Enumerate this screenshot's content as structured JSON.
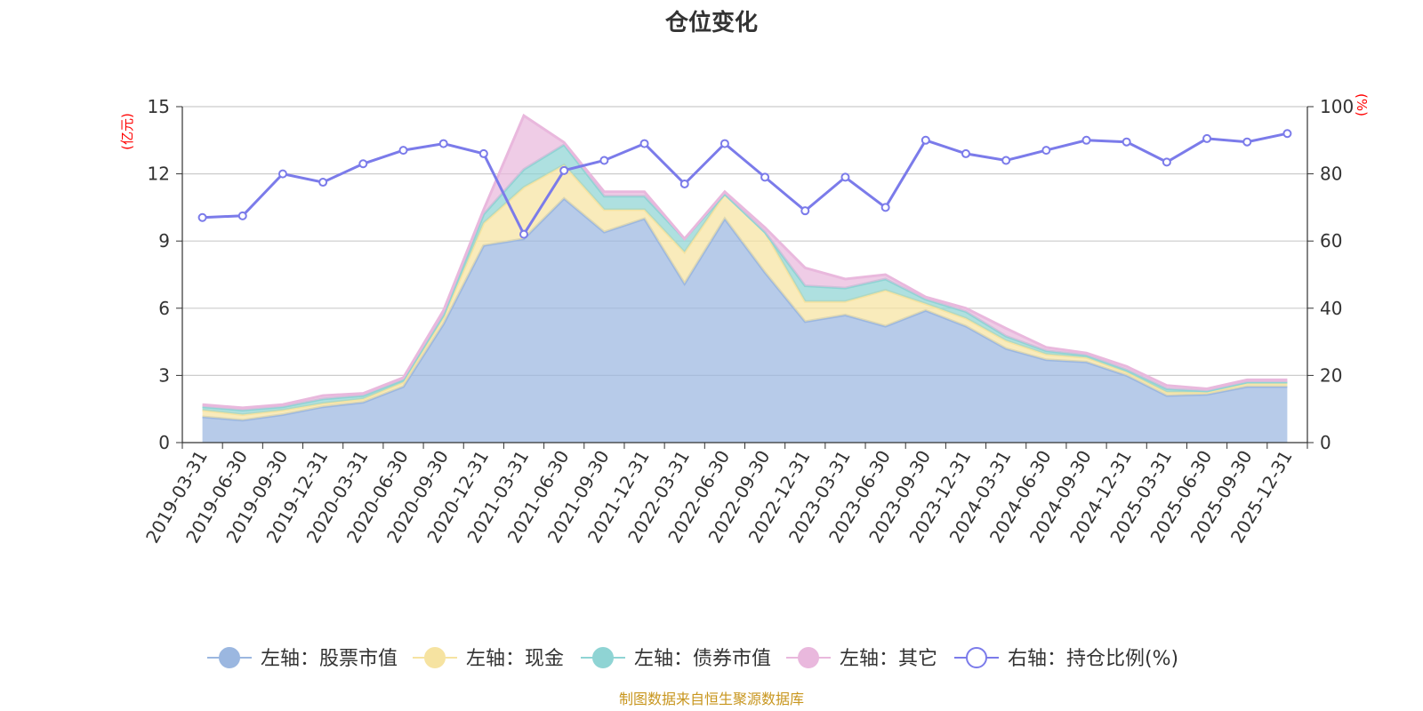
{
  "chart_data": {
    "type": "area",
    "title": "仓位变化",
    "left_axis_unit": "(亿元)",
    "right_axis_unit": "(%)",
    "left_ylim": [
      0,
      15
    ],
    "left_ticks": [
      "0",
      "3",
      "6",
      "9",
      "12",
      "15"
    ],
    "right_ylim": [
      0,
      100
    ],
    "right_ticks": [
      "0",
      "20",
      "40",
      "60",
      "80",
      "100"
    ],
    "categories": [
      "2019-03-31",
      "2019-06-30",
      "2019-09-30",
      "2019-12-31",
      "2020-03-31",
      "2020-06-30",
      "2020-09-30",
      "2020-12-31",
      "2021-03-31",
      "2021-06-30",
      "2021-09-30",
      "2021-12-31",
      "2022-03-31",
      "2022-06-30",
      "2022-09-30",
      "2022-12-31",
      "2023-03-31",
      "2023-06-30",
      "2023-09-30",
      "2023-12-31",
      "2024-03-31",
      "2024-06-30",
      "2024-09-30",
      "2024-12-31",
      "2025-03-31",
      "2025-06-30",
      "2025-09-30",
      "2025-12-31"
    ],
    "stacked_series": [
      {
        "name": "左轴：股票市值",
        "color": "#9bb7e0",
        "values": [
          1.15,
          1.0,
          1.25,
          1.6,
          1.8,
          2.5,
          5.3,
          8.8,
          9.1,
          10.9,
          9.4,
          10.0,
          7.1,
          10.0,
          7.6,
          5.4,
          5.7,
          5.2,
          5.9,
          5.2,
          4.2,
          3.7,
          3.6,
          3.0,
          2.1,
          2.15,
          2.5,
          2.5
        ]
      },
      {
        "name": "左轴：现金",
        "color": "#f6e3a1",
        "values": [
          0.3,
          0.25,
          0.2,
          0.15,
          0.15,
          0.2,
          0.3,
          1.0,
          2.3,
          1.5,
          1.0,
          0.4,
          1.4,
          1.1,
          1.8,
          0.9,
          0.6,
          1.6,
          0.3,
          0.35,
          0.35,
          0.25,
          0.2,
          0.15,
          0.15,
          0.1,
          0.15,
          0.15
        ]
      },
      {
        "name": "左轴：债券市值",
        "color": "#8fd4d4",
        "values": [
          0.15,
          0.2,
          0.15,
          0.2,
          0.15,
          0.1,
          0.1,
          0.4,
          0.8,
          0.9,
          0.6,
          0.6,
          0.6,
          0.0,
          0.0,
          0.7,
          0.6,
          0.5,
          0.2,
          0.3,
          0.2,
          0.15,
          0.1,
          0.1,
          0.15,
          0.05,
          0.05,
          0.05
        ]
      },
      {
        "name": "左轴：其它",
        "color": "#e9b8dd",
        "values": [
          0.1,
          0.1,
          0.1,
          0.15,
          0.1,
          0.1,
          0.2,
          0.2,
          2.4,
          0.1,
          0.2,
          0.2,
          0.0,
          0.1,
          0.2,
          0.8,
          0.4,
          0.2,
          0.1,
          0.15,
          0.35,
          0.15,
          0.1,
          0.15,
          0.15,
          0.1,
          0.1,
          0.1
        ]
      }
    ],
    "line_series": {
      "name": "右轴：持仓比例(%)",
      "color": "#7b7bea",
      "values": [
        67,
        67.5,
        80,
        77.5,
        83,
        87,
        89,
        86,
        62,
        81,
        84,
        89,
        77,
        89,
        79,
        69,
        79,
        70,
        90,
        86,
        84,
        87,
        90,
        89.5,
        83.5,
        90.5,
        89.5,
        92
      ]
    },
    "source_note": "制图数据来自恒生聚源数据库"
  }
}
